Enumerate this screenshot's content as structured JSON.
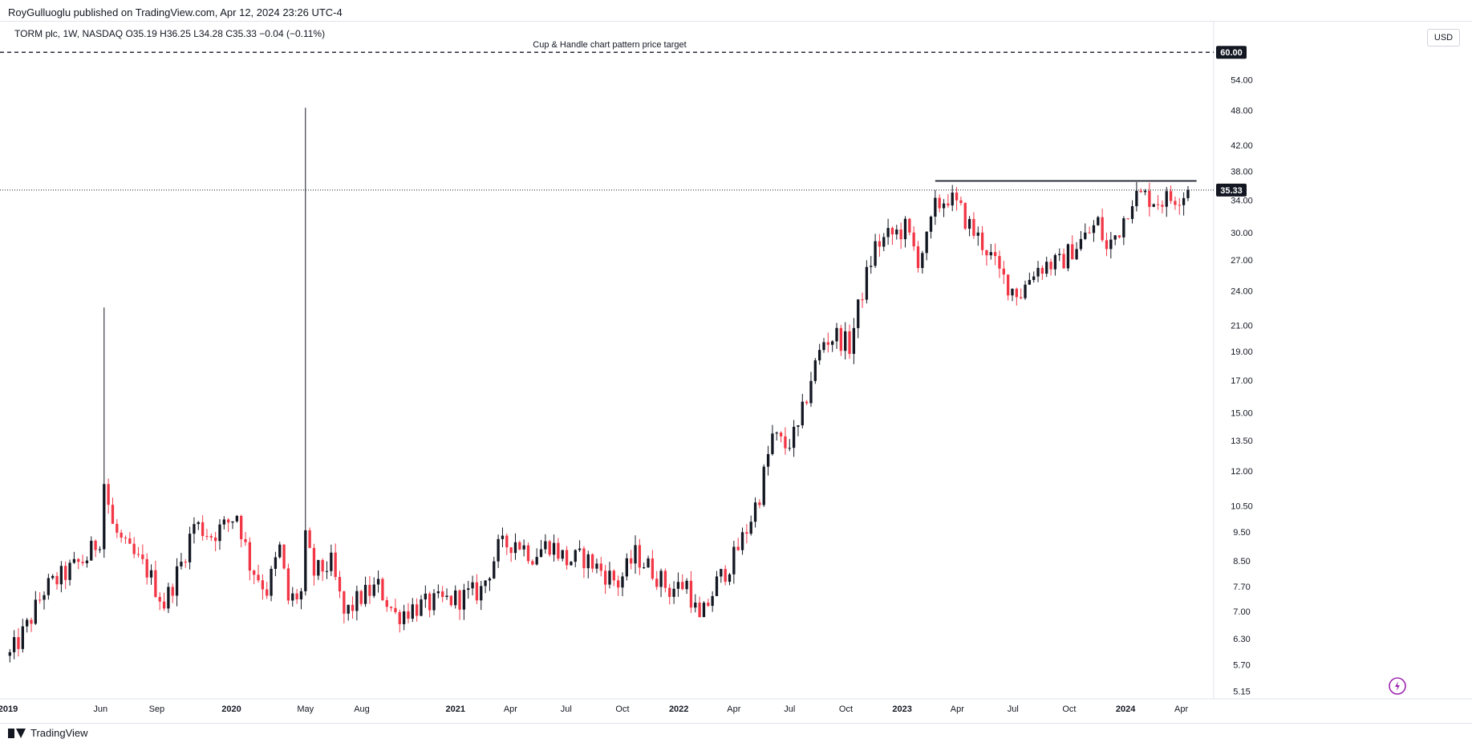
{
  "header": {
    "publisher": "RoyGulluoglu published on TradingView.com, Apr 12, 2024 23:26 UTC-4",
    "legend": "TORM plc, 1W, NASDAQ  O35.19  H36.25  L34.28  C35.33  −0.04 (−0.11%)",
    "currency": "USD"
  },
  "footer": {
    "brand": "TradingView"
  },
  "chart_data": {
    "type": "candlestick",
    "symbol": "TORM plc",
    "interval": "1W",
    "exchange": "NASDAQ",
    "scale": "log",
    "y_ticks": [
      "5.15",
      "5.70",
      "6.30",
      "7.00",
      "7.70",
      "8.50",
      "9.50",
      "10.50",
      "12.00",
      "13.50",
      "15.00",
      "17.00",
      "19.00",
      "21.00",
      "24.00",
      "27.00",
      "30.00",
      "34.00",
      "38.00",
      "42.00",
      "48.00",
      "54.00"
    ],
    "x_ticks": [
      {
        "label": "2019",
        "date": "2019-01-01",
        "bold": true
      },
      {
        "label": "Jun",
        "date": "2019-06-01"
      },
      {
        "label": "Sep",
        "date": "2019-09-01"
      },
      {
        "label": "2020",
        "date": "2020-01-01",
        "bold": true
      },
      {
        "label": "May",
        "date": "2020-05-01"
      },
      {
        "label": "Aug",
        "date": "2020-08-01"
      },
      {
        "label": "2021",
        "date": "2021-01-01",
        "bold": true
      },
      {
        "label": "Apr",
        "date": "2021-04-01"
      },
      {
        "label": "Jul",
        "date": "2021-07-01"
      },
      {
        "label": "Oct",
        "date": "2021-10-01"
      },
      {
        "label": "2022",
        "date": "2022-01-01",
        "bold": true
      },
      {
        "label": "Apr",
        "date": "2022-04-01"
      },
      {
        "label": "Jul",
        "date": "2022-07-01"
      },
      {
        "label": "Oct",
        "date": "2022-10-01"
      },
      {
        "label": "2023",
        "date": "2023-01-01",
        "bold": true
      },
      {
        "label": "Apr",
        "date": "2023-04-01"
      },
      {
        "label": "Jul",
        "date": "2023-07-01"
      },
      {
        "label": "Oct",
        "date": "2023-10-01"
      },
      {
        "label": "2024",
        "date": "2024-01-01",
        "bold": true
      },
      {
        "label": "Apr",
        "date": "2024-04-01"
      }
    ],
    "x_range": [
      "2019-01-01",
      "2024-05-24"
    ],
    "y_range": [
      5.0,
      67.5
    ],
    "last_price": {
      "value": 35.33,
      "label": "35.33"
    },
    "target": {
      "value": 60.0,
      "label": "60.00",
      "annotation": "Cup & Handle chart pattern price target"
    },
    "resistance": {
      "value": 36.6,
      "from": "2023-02-24",
      "to": "2024-04-26"
    },
    "colors": {
      "up": "#131722",
      "down": "#f23645",
      "line": "#131722"
    },
    "anchors": [
      [
        "2019-01-04",
        5.9
      ],
      [
        "2019-02-01",
        6.6
      ],
      [
        "2019-03-01",
        7.6
      ],
      [
        "2019-04-12",
        8.2
      ],
      [
        "2019-05-10",
        8.6
      ],
      [
        "2019-05-31",
        9.3
      ],
      [
        "2019-06-07",
        11.5
      ],
      [
        "2019-06-21",
        9.7
      ],
      [
        "2019-07-12",
        8.9
      ],
      [
        "2019-08-16",
        8.2
      ],
      [
        "2019-09-13",
        7.2
      ],
      [
        "2019-10-11",
        8.4
      ],
      [
        "2019-11-01",
        9.8
      ],
      [
        "2019-11-29",
        9.4
      ],
      [
        "2019-12-20",
        9.7
      ],
      [
        "2020-01-10",
        10.2
      ],
      [
        "2020-01-31",
        8.4
      ],
      [
        "2020-02-28",
        7.6
      ],
      [
        "2020-03-20",
        8.9
      ],
      [
        "2020-04-03",
        7.3
      ],
      [
        "2020-04-24",
        7.5
      ],
      [
        "2020-05-01",
        9.2
      ],
      [
        "2020-05-15",
        8.1
      ],
      [
        "2020-06-12",
        8.4
      ],
      [
        "2020-07-03",
        6.9
      ],
      [
        "2020-07-31",
        7.4
      ],
      [
        "2020-08-28",
        7.7
      ],
      [
        "2020-09-25",
        6.9
      ],
      [
        "2020-10-23",
        7.1
      ],
      [
        "2020-11-20",
        7.2
      ],
      [
        "2020-12-18",
        7.3
      ],
      [
        "2021-01-15",
        7.4
      ],
      [
        "2021-02-12",
        7.6
      ],
      [
        "2021-03-12",
        8.9
      ],
      [
        "2021-04-09",
        9.2
      ],
      [
        "2021-05-07",
        8.7
      ],
      [
        "2021-06-04",
        9.1
      ],
      [
        "2021-07-02",
        8.5
      ],
      [
        "2021-07-30",
        8.6
      ],
      [
        "2021-08-27",
        8.2
      ],
      [
        "2021-09-24",
        7.8
      ],
      [
        "2021-10-22",
        8.7
      ],
      [
        "2021-11-19",
        8.2
      ],
      [
        "2021-12-17",
        7.6
      ],
      [
        "2022-01-14",
        7.8
      ],
      [
        "2022-02-04",
        6.7
      ],
      [
        "2022-03-04",
        7.8
      ],
      [
        "2022-04-01",
        8.6
      ],
      [
        "2022-04-22",
        9.6
      ],
      [
        "2022-05-13",
        11.0
      ],
      [
        "2022-06-03",
        13.7
      ],
      [
        "2022-06-24",
        13.2
      ],
      [
        "2022-07-15",
        14.0
      ],
      [
        "2022-08-05",
        17.2
      ],
      [
        "2022-08-26",
        19.8
      ],
      [
        "2022-09-16",
        20.2
      ],
      [
        "2022-10-07",
        19.4
      ],
      [
        "2022-10-28",
        24.0
      ],
      [
        "2022-11-18",
        28.5
      ],
      [
        "2022-12-09",
        29.5
      ],
      [
        "2023-01-06",
        30.5
      ],
      [
        "2023-01-27",
        27.2
      ],
      [
        "2023-02-10",
        29.0
      ],
      [
        "2023-02-24",
        33.0
      ],
      [
        "2023-03-17",
        34.5
      ],
      [
        "2023-04-07",
        32.5
      ],
      [
        "2023-04-28",
        30.0
      ],
      [
        "2023-05-19",
        28.2
      ],
      [
        "2023-06-09",
        25.6
      ],
      [
        "2023-06-30",
        24.2
      ],
      [
        "2023-07-14",
        23.8
      ],
      [
        "2023-08-04",
        26.0
      ],
      [
        "2023-08-25",
        26.6
      ],
      [
        "2023-09-15",
        26.6
      ],
      [
        "2023-10-06",
        28.2
      ],
      [
        "2023-10-27",
        29.5
      ],
      [
        "2023-11-17",
        31.2
      ],
      [
        "2023-12-01",
        28.0
      ],
      [
        "2023-12-22",
        30.5
      ],
      [
        "2024-01-12",
        34.5
      ],
      [
        "2024-02-02",
        34.5
      ],
      [
        "2024-02-23",
        34.0
      ],
      [
        "2024-03-15",
        34.2
      ],
      [
        "2024-04-12",
        35.33
      ]
    ],
    "spikes": [
      {
        "date": "2019-06-07",
        "high": 22.5,
        "color": "down"
      },
      {
        "date": "2020-05-01",
        "high": 48.5,
        "color": "up"
      }
    ]
  }
}
